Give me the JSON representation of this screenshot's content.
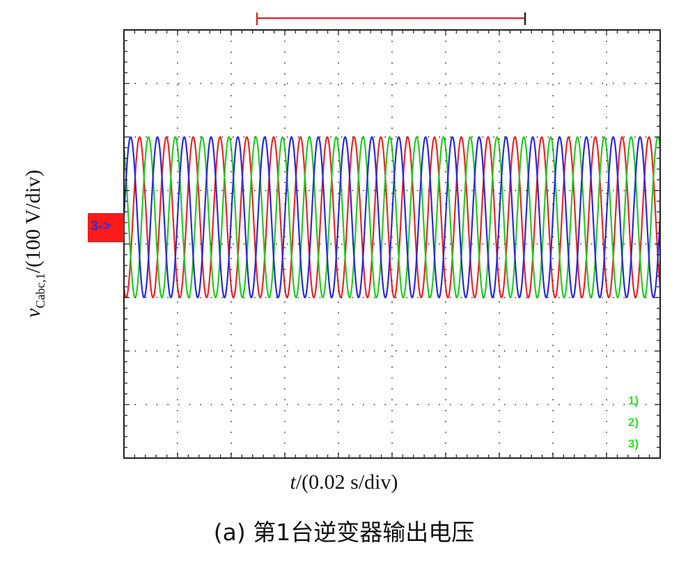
{
  "chart_data": {
    "type": "line",
    "title": "",
    "xlabel_var": "t",
    "xlabel_rest": "/(0.02 s/div)",
    "ylabel_var": "v",
    "ylabel_sub": "Cabc,1",
    "ylabel_rest": "/(100 V/div)",
    "caption": "(a) 第1台逆变器输出电压",
    "grid": true,
    "x_divisions": 10,
    "y_divisions": 8,
    "x_scale_per_div": 0.02,
    "y_scale_per_div": 100,
    "xlim": [
      0,
      0.2
    ],
    "ylim": [
      -400,
      400
    ],
    "waveform": "three-phase sinusoid",
    "frequency_hz": 100,
    "offset": 0.5,
    "amplitude": 1.5,
    "series": [
      {
        "color": "#e8262a",
        "phase_deg": -120
      },
      {
        "color": "#22cc22",
        "phase_deg": 120
      },
      {
        "color": "#2a2ad8",
        "phase_deg": 0
      }
    ],
    "trace_labels": [
      "1)",
      "2)",
      "3)"
    ],
    "ground_marker_label": "3->",
    "trigger_bar_color": "#d02020"
  }
}
